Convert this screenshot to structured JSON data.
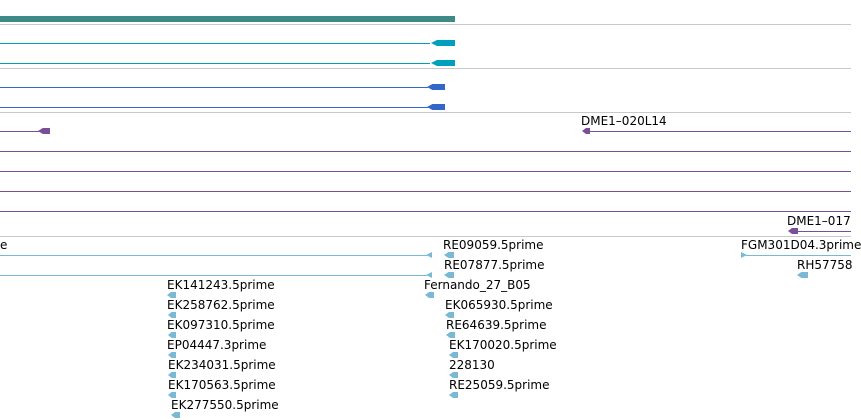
{
  "colors": {
    "teal": "#3e8a87",
    "cyan": "#009fbc",
    "blue": "#3366cc",
    "purple": "#7a4f9a",
    "est": "#79b9d6",
    "divider": "#c8c8c8"
  },
  "labels": {
    "dme1_020l14": "DME1–020L14",
    "dme1_017": "DME1–017",
    "prime_e": "e",
    "re09059": "RE09059.5prime",
    "fgm301d04": "FGM301D04.3prime",
    "re07877": "RE07877.5prime",
    "rh5775": "RH57758",
    "ek141243": "EK141243.5prime",
    "fernando": "Fernando_27_B05",
    "ek258762": "EK258762.5prime",
    "ek065930": "EK065930.5prime",
    "ek097310": "EK097310.5prime",
    "re64639": "RE64639.5prime",
    "ep04447": "EP04447.3prime",
    "ek170020": "EK170020.5prime",
    "ek234031": "EK234031.5prime",
    "n228130": "228130",
    "ek170563": "EK170563.5prime",
    "re25059": "RE25059.5prime",
    "ek277550": "EK277550.5prime"
  }
}
